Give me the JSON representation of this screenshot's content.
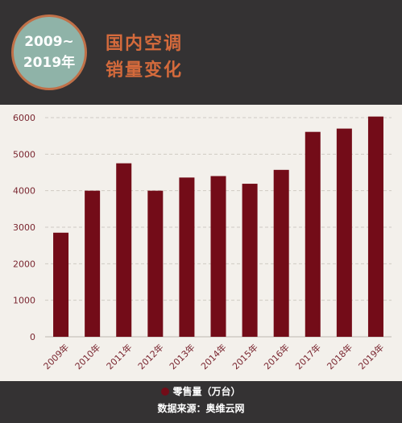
{
  "header": {
    "badge_line1": "2009~",
    "badge_line2": "2019年",
    "title_line1": "国内空调",
    "title_line2": "销量变化"
  },
  "footer": {
    "source": "数据来源：奥维云网"
  },
  "colors": {
    "bar": "#730c18",
    "axis_text": "#7a2630",
    "grid": "#cfcac4",
    "title": "#d46a3c",
    "badge_fill": "#8fb3a8",
    "badge_ring": "#c07048"
  },
  "chart_data": {
    "type": "bar",
    "categories": [
      "2009年",
      "2010年",
      "2011年",
      "2012年",
      "2013年",
      "2014年",
      "2015年",
      "2016年",
      "2017年",
      "2018年",
      "2019年"
    ],
    "series": [
      {
        "name": "零售量（万台）",
        "values": [
          2850,
          4000,
          4750,
          4000,
          4360,
          4400,
          4190,
          4570,
          5610,
          5700,
          6030
        ]
      }
    ],
    "ylim": [
      0,
      6000
    ],
    "yticks": [
      0,
      1000,
      2000,
      3000,
      4000,
      5000,
      6000
    ],
    "grid": true,
    "legend_position": "bottom-center"
  }
}
